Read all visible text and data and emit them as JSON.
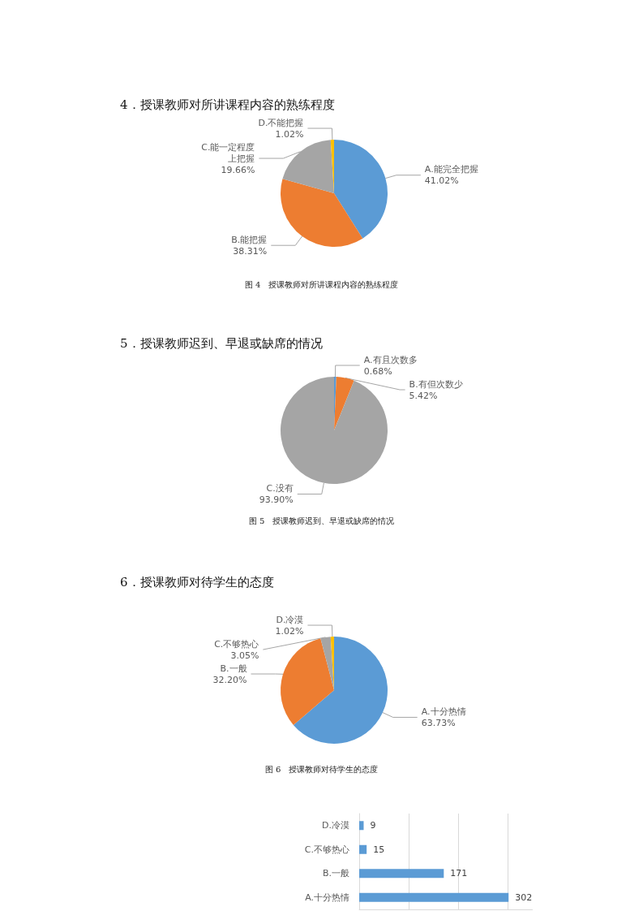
{
  "chart_data": [
    {
      "type": "pie",
      "title": "4．授课教师对所讲课程内容的熟练程度",
      "categories": [
        "A.能完全把握",
        "B.能把握",
        "C.能一定程度上把握",
        "D.不能把握"
      ],
      "values": [
        41.02,
        38.31,
        19.66,
        1.02
      ],
      "data_labels": true,
      "value_labels": [
        "41.02%",
        "38.31%",
        "19.66%",
        "1.02%"
      ],
      "colors": [
        "#5b9bd5",
        "#ed7d31",
        "#a5a5a5",
        "#ffc000"
      ],
      "annotations": [
        "图 4　授课教师对所讲课程内容的熟练程度"
      ]
    },
    {
      "type": "pie",
      "title": "5．授课教师迟到、早退或缺席的情况",
      "categories": [
        "A.有且次数多",
        "B.有但次数少",
        "C.没有"
      ],
      "values": [
        0.68,
        5.42,
        93.9
      ],
      "data_labels": true,
      "value_labels": [
        "0.68%",
        "5.42%",
        "93.90%"
      ],
      "colors": [
        "#5b9bd5",
        "#ed7d31",
        "#a5a5a5"
      ],
      "annotations": [
        "图 5　授课教师迟到、早退或缺席的情况"
      ]
    },
    {
      "type": "pie",
      "title": "6．授课教师对待学生的态度",
      "categories": [
        "A.十分热情",
        "B.一般",
        "C.不够热心",
        "D.冷漠"
      ],
      "values": [
        63.73,
        32.2,
        3.05,
        1.02
      ],
      "data_labels": true,
      "value_labels": [
        "63.73%",
        "32.20%",
        "3.05%",
        "1.02%"
      ],
      "colors": [
        "#5b9bd5",
        "#ed7d31",
        "#a5a5a5",
        "#ffc000"
      ],
      "annotations": [
        "图 6　授课教师对待学生的态度"
      ]
    },
    {
      "type": "bar",
      "orientation": "horizontal",
      "categories": [
        "D.冷漠",
        "C.不够热心",
        "B.一般",
        "A.十分热情"
      ],
      "values": [
        9,
        15,
        171,
        302
      ],
      "color": "#5b9bd5",
      "xlim": [
        0,
        350
      ],
      "xticks": [
        0,
        100,
        200,
        300
      ],
      "grid": "x",
      "tick_labels": "y",
      "data_labels": true
    }
  ]
}
